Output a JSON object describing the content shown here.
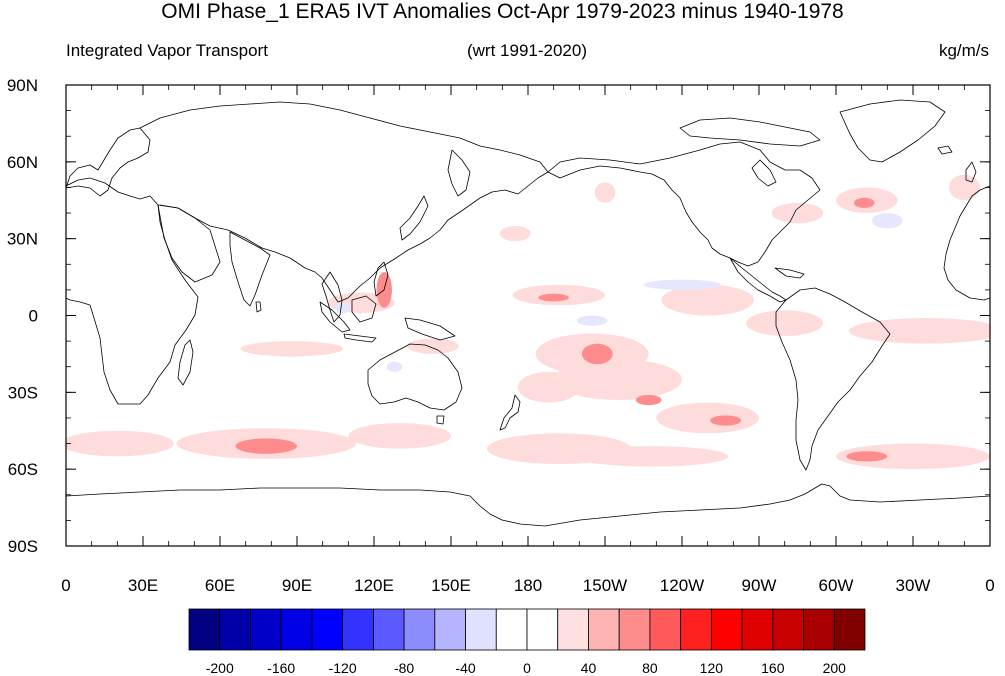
{
  "header": {
    "title": "OMI Phase_1 ERA5 IVT Anomalies Oct-Apr 1979-2023 minus 1940-1978",
    "left_string": "Integrated Vapor Transport",
    "center_string": "(wrt 1991-2020)",
    "right_string": "kg/m/s"
  },
  "map": {
    "projection": "cylindrical-equidistant",
    "lon_range": [
      0,
      360
    ],
    "lat_range": [
      -90,
      90
    ],
    "lat_labels": [
      "90N",
      "60N",
      "30N",
      "0",
      "30S",
      "60S",
      "90S"
    ],
    "lon_labels": [
      "0",
      "30E",
      "60E",
      "90E",
      "120E",
      "150E",
      "180",
      "150W",
      "120W",
      "90W",
      "60W",
      "30W",
      "0"
    ]
  },
  "colorbar": {
    "labels": [
      "-200",
      "-160",
      "-120",
      "-80",
      "-40",
      "0",
      "40",
      "80",
      "120",
      "160",
      "200"
    ],
    "colors": [
      "#000080",
      "#0000a8",
      "#0000c8",
      "#0000e6",
      "#0000ff",
      "#3333ff",
      "#5a5aff",
      "#8c8cff",
      "#b4b4ff",
      "#e0e0ff",
      "#ffffff",
      "#ffffff",
      "#ffe0e0",
      "#ffb4b4",
      "#ff8c8c",
      "#ff5a5a",
      "#ff2020",
      "#ff0000",
      "#e00000",
      "#c80000",
      "#a80000",
      "#800000"
    ]
  },
  "anomaly_features": [
    {
      "lon": 78,
      "lat": -50,
      "rx": 35,
      "ry": 6,
      "value": 40
    },
    {
      "lon": 78,
      "lat": -51,
      "rx": 12,
      "ry": 3,
      "value": 80
    },
    {
      "lon": 20,
      "lat": -50,
      "rx": 22,
      "ry": 5,
      "value": 40
    },
    {
      "lon": 130,
      "lat": -47,
      "rx": 20,
      "ry": 5,
      "value": 40
    },
    {
      "lon": 192,
      "lat": -52,
      "rx": 28,
      "ry": 6,
      "value": 40
    },
    {
      "lon": 228,
      "lat": -55,
      "rx": 30,
      "ry": 4,
      "value": 40
    },
    {
      "lon": 330,
      "lat": -55,
      "rx": 30,
      "ry": 5,
      "value": 40
    },
    {
      "lon": 312,
      "lat": -55,
      "rx": 8,
      "ry": 2,
      "value": 80
    },
    {
      "lon": 250,
      "lat": -40,
      "rx": 20,
      "ry": 6,
      "value": 40
    },
    {
      "lon": 257,
      "lat": -41,
      "rx": 6,
      "ry": 2,
      "value": 80
    },
    {
      "lon": 215,
      "lat": -25,
      "rx": 25,
      "ry": 8,
      "value": 40
    },
    {
      "lon": 227,
      "lat": -33,
      "rx": 5,
      "ry": 2,
      "value": 80
    },
    {
      "lon": 205,
      "lat": -15,
      "rx": 22,
      "ry": 8,
      "value": 40
    },
    {
      "lon": 207,
      "lat": -15,
      "rx": 6,
      "ry": 4,
      "value": 80
    },
    {
      "lon": 188,
      "lat": -28,
      "rx": 12,
      "ry": 6,
      "value": 40
    },
    {
      "lon": 88,
      "lat": -13,
      "rx": 20,
      "ry": 3,
      "value": 40
    },
    {
      "lon": 143,
      "lat": -12,
      "rx": 10,
      "ry": 3,
      "value": 40
    },
    {
      "lon": 115,
      "lat": 5,
      "rx": 13,
      "ry": 4,
      "value": 40
    },
    {
      "lon": 124,
      "lat": 10,
      "rx": 3,
      "ry": 7,
      "value": 80
    },
    {
      "lon": 192,
      "lat": 8,
      "rx": 18,
      "ry": 4,
      "value": 40
    },
    {
      "lon": 190,
      "lat": 7,
      "rx": 6,
      "ry": 1.5,
      "value": 80
    },
    {
      "lon": 250,
      "lat": 6,
      "rx": 18,
      "ry": 6,
      "value": 40
    },
    {
      "lon": 335,
      "lat": -6,
      "rx": 30,
      "ry": 5,
      "value": 40
    },
    {
      "lon": 280,
      "lat": -3,
      "rx": 15,
      "ry": 5,
      "value": 40
    },
    {
      "lon": 285,
      "lat": 40,
      "rx": 10,
      "ry": 4,
      "value": 40
    },
    {
      "lon": 312,
      "lat": 45,
      "rx": 12,
      "ry": 5,
      "value": 40
    },
    {
      "lon": 311,
      "lat": 44,
      "rx": 4,
      "ry": 2,
      "value": 80
    },
    {
      "lon": 350,
      "lat": 50,
      "rx": 6,
      "ry": 5,
      "value": 40
    },
    {
      "lon": 175,
      "lat": 32,
      "rx": 6,
      "ry": 3,
      "value": 40
    },
    {
      "lon": 210,
      "lat": 48,
      "rx": 4,
      "ry": 4,
      "value": 40
    },
    {
      "lon": 205,
      "lat": -2,
      "rx": 6,
      "ry": 2,
      "value": -40
    },
    {
      "lon": 320,
      "lat": 37,
      "rx": 6,
      "ry": 3,
      "value": -40
    },
    {
      "lon": 240,
      "lat": 12,
      "rx": 15,
      "ry": 2,
      "value": -40
    },
    {
      "lon": 108,
      "lat": 3,
      "rx": 3,
      "ry": 2,
      "value": -40
    },
    {
      "lon": 128,
      "lat": -20,
      "rx": 3,
      "ry": 2,
      "value": -40
    }
  ]
}
